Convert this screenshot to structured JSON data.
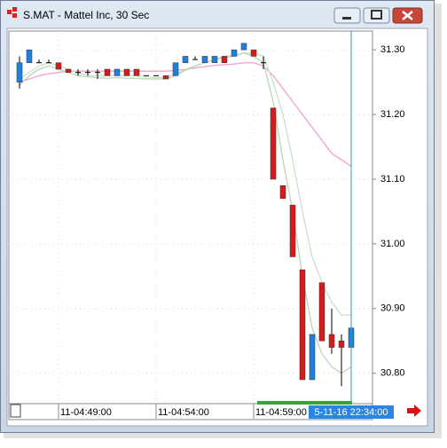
{
  "window_title": "S.MAT - Mattel Inc, 30 Sec",
  "chart_data": {
    "type": "candlestick",
    "categories": [
      null,
      null,
      null,
      null,
      "11-04:49:00",
      null,
      null,
      null,
      null,
      null,
      null,
      null,
      null,
      null,
      "11-04:54:00",
      null,
      null,
      null,
      null,
      null,
      null,
      null,
      null,
      null,
      "11-04:59:00",
      null,
      null,
      null,
      null,
      null,
      null,
      null,
      null,
      null,
      null
    ],
    "open": [
      31.25,
      31.28,
      31.28,
      31.28,
      31.28,
      31.27,
      31.265,
      31.265,
      31.265,
      31.27,
      31.26,
      31.27,
      31.27,
      31.26,
      31.26,
      31.26,
      31.26,
      31.28,
      31.285,
      31.28,
      31.28,
      31.29,
      31.29,
      31.3,
      31.3,
      31.28,
      31.21,
      31.09,
      31.06,
      30.96,
      30.79,
      30.94,
      30.86,
      30.85,
      30.84
    ],
    "high": [
      31.29,
      31.3,
      31.285,
      31.285,
      31.28,
      31.27,
      31.27,
      31.27,
      31.27,
      31.27,
      31.27,
      31.27,
      31.27,
      31.26,
      31.26,
      31.26,
      31.28,
      31.29,
      31.29,
      31.29,
      31.29,
      31.29,
      31.3,
      31.31,
      31.3,
      31.29,
      31.21,
      31.09,
      31.06,
      30.96,
      30.86,
      30.94,
      30.9,
      30.86,
      30.88
    ],
    "low": [
      31.24,
      31.28,
      31.28,
      31.28,
      31.27,
      31.265,
      31.26,
      31.26,
      31.255,
      31.26,
      31.26,
      31.26,
      31.26,
      31.26,
      31.26,
      31.255,
      31.26,
      31.28,
      31.285,
      31.28,
      31.28,
      31.28,
      31.29,
      31.3,
      31.29,
      31.27,
      31.1,
      31.07,
      30.98,
      30.79,
      30.79,
      30.85,
      30.83,
      30.78,
      30.81
    ],
    "close": [
      31.28,
      31.3,
      31.28,
      31.28,
      31.27,
      31.265,
      31.265,
      31.265,
      31.265,
      31.26,
      31.27,
      31.26,
      31.26,
      31.26,
      31.26,
      31.255,
      31.28,
      31.29,
      31.285,
      31.29,
      31.29,
      31.28,
      31.3,
      31.31,
      31.29,
      31.28,
      31.1,
      31.07,
      30.98,
      30.79,
      30.86,
      30.85,
      30.84,
      30.84,
      30.87
    ],
    "up_color": "#1f7fe0",
    "down_color": "#d41c1c",
    "flat_color": "#000000",
    "lines": [
      {
        "color": "#f0a0d0",
        "values": [
          31.25,
          31.255,
          31.26,
          31.263,
          31.265,
          31.267,
          31.267,
          31.267,
          31.267,
          31.267,
          31.267,
          31.267,
          31.267,
          31.267,
          31.267,
          31.267,
          31.268,
          31.27,
          31.272,
          31.274,
          31.276,
          31.277,
          31.278,
          31.28,
          31.28,
          31.275,
          31.26,
          31.24,
          31.22,
          31.2,
          31.18,
          31.16,
          31.14,
          31.13,
          31.12
        ]
      },
      {
        "color": "#c8e2c8",
        "values": [
          31.255,
          31.265,
          31.275,
          31.28,
          31.275,
          31.27,
          31.265,
          31.26,
          31.26,
          31.26,
          31.26,
          31.26,
          31.26,
          31.258,
          31.257,
          31.258,
          31.262,
          31.27,
          31.275,
          31.28,
          31.285,
          31.29,
          31.292,
          31.295,
          31.295,
          31.29,
          31.25,
          31.2,
          31.13,
          31.05,
          30.98,
          30.94,
          30.91,
          30.89,
          30.89
        ]
      },
      {
        "color": "#b8d8b8",
        "values": [
          31.245,
          31.26,
          31.27,
          31.275,
          31.27,
          31.265,
          31.26,
          31.258,
          31.257,
          31.256,
          31.257,
          31.256,
          31.256,
          31.255,
          31.255,
          31.255,
          31.26,
          31.268,
          31.275,
          31.28,
          31.285,
          31.288,
          31.29,
          31.295,
          31.29,
          31.28,
          31.22,
          31.13,
          31.05,
          30.95,
          30.87,
          30.83,
          30.81,
          30.8,
          30.81
        ]
      }
    ],
    "ylim": [
      30.753,
      31.329
    ],
    "yticks": [
      {
        "value": 30.8,
        "label": "30.80"
      },
      {
        "value": 30.9,
        "label": "30.90"
      },
      {
        "value": 31.0,
        "label": "31.00"
      },
      {
        "value": 31.1,
        "label": "31.10"
      },
      {
        "value": 31.2,
        "label": "31.20"
      },
      {
        "value": 31.3,
        "label": "31.30"
      }
    ],
    "grid": true,
    "crosshair_label": "5-11-16 22:34:00"
  }
}
